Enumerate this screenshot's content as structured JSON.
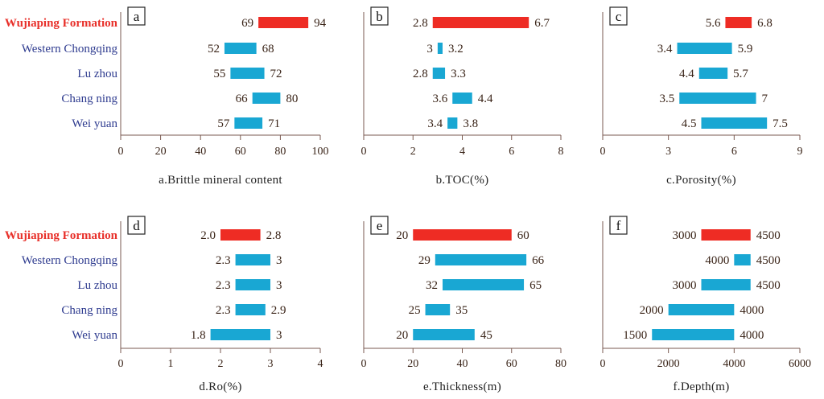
{
  "colors": {
    "highlight": "#EE2C24",
    "default": "#19A7D3"
  },
  "categories": [
    "Wujiaping Formation",
    "Western Chongqing",
    "Lu zhou",
    "Chang ning",
    "Wei yuan"
  ],
  "chart_data": [
    {
      "type": "bar",
      "panel": "a",
      "xlabel": "a.Brittle mineral content",
      "xlim": [
        0,
        100
      ],
      "ticks": [
        0,
        20,
        40,
        60,
        80,
        100
      ],
      "series": [
        {
          "name": "range_low",
          "values": [
            69,
            52,
            55,
            66,
            57
          ]
        },
        {
          "name": "range_high",
          "values": [
            94,
            68,
            72,
            80,
            71
          ]
        }
      ],
      "low_labels": [
        "69",
        "52",
        "55",
        "66",
        "57"
      ],
      "high_labels": [
        "94",
        "68",
        "72",
        "80",
        "71"
      ]
    },
    {
      "type": "bar",
      "panel": "b",
      "xlabel": "b.TOC(%)",
      "xlim": [
        0,
        8
      ],
      "ticks": [
        0,
        2,
        4,
        6,
        8
      ],
      "series": [
        {
          "name": "range_low",
          "values": [
            2.8,
            3,
            2.8,
            3.6,
            3.4
          ]
        },
        {
          "name": "range_high",
          "values": [
            6.7,
            3.2,
            3.3,
            4.4,
            3.8
          ]
        }
      ],
      "low_labels": [
        "2.8",
        "3",
        "2.8",
        "3.6",
        "3.4"
      ],
      "high_labels": [
        "6.7",
        "3.2",
        "3.3",
        "4.4",
        "3.8"
      ]
    },
    {
      "type": "bar",
      "panel": "c",
      "xlabel": "c.Porosity(%)",
      "xlim": [
        0,
        9
      ],
      "ticks": [
        0,
        3,
        6,
        9
      ],
      "series": [
        {
          "name": "range_low",
          "values": [
            5.6,
            3.4,
            4.4,
            3.5,
            4.5
          ]
        },
        {
          "name": "range_high",
          "values": [
            6.8,
            5.9,
            5.7,
            7,
            7.5
          ]
        }
      ],
      "low_labels": [
        "5.6",
        "3.4",
        "4.4",
        "3.5",
        "4.5"
      ],
      "high_labels": [
        "6.8",
        "5.9",
        "5.7",
        "7",
        "7.5"
      ]
    },
    {
      "type": "bar",
      "panel": "d",
      "xlabel": "d.Ro(%)",
      "xlim": [
        0,
        4
      ],
      "ticks": [
        0,
        1,
        2,
        3,
        4
      ],
      "series": [
        {
          "name": "range_low",
          "values": [
            2.0,
            2.3,
            2.3,
            2.3,
            1.8
          ]
        },
        {
          "name": "range_high",
          "values": [
            2.8,
            3,
            3,
            2.9,
            3
          ]
        }
      ],
      "low_labels": [
        "2.0",
        "2.3",
        "2.3",
        "2.3",
        "1.8"
      ],
      "high_labels": [
        "2.8",
        "3",
        "3",
        "2.9",
        "3"
      ]
    },
    {
      "type": "bar",
      "panel": "e",
      "xlabel": "e.Thickness(m)",
      "xlim": [
        0,
        80
      ],
      "ticks": [
        0,
        20,
        40,
        60,
        80
      ],
      "series": [
        {
          "name": "range_low",
          "values": [
            20,
            29,
            32,
            25,
            20
          ]
        },
        {
          "name": "range_high",
          "values": [
            60,
            66,
            65,
            35,
            45
          ]
        }
      ],
      "low_labels": [
        "20",
        "29",
        "32",
        "25",
        "20"
      ],
      "high_labels": [
        "60",
        "66",
        "65",
        "35",
        "45"
      ]
    },
    {
      "type": "bar",
      "panel": "f",
      "xlabel": "f.Depth(m)",
      "xlim": [
        0,
        6000
      ],
      "ticks": [
        0,
        2000,
        4000,
        6000
      ],
      "series": [
        {
          "name": "range_low",
          "values": [
            3000,
            4000,
            3000,
            2000,
            1500
          ]
        },
        {
          "name": "range_high",
          "values": [
            4500,
            4500,
            4500,
            4000,
            4000
          ]
        }
      ],
      "low_labels": [
        "3000",
        "4000",
        "3000",
        "2000",
        "1500"
      ],
      "high_labels": [
        "4500",
        "4500",
        "4500",
        "4000",
        "4000"
      ]
    }
  ]
}
